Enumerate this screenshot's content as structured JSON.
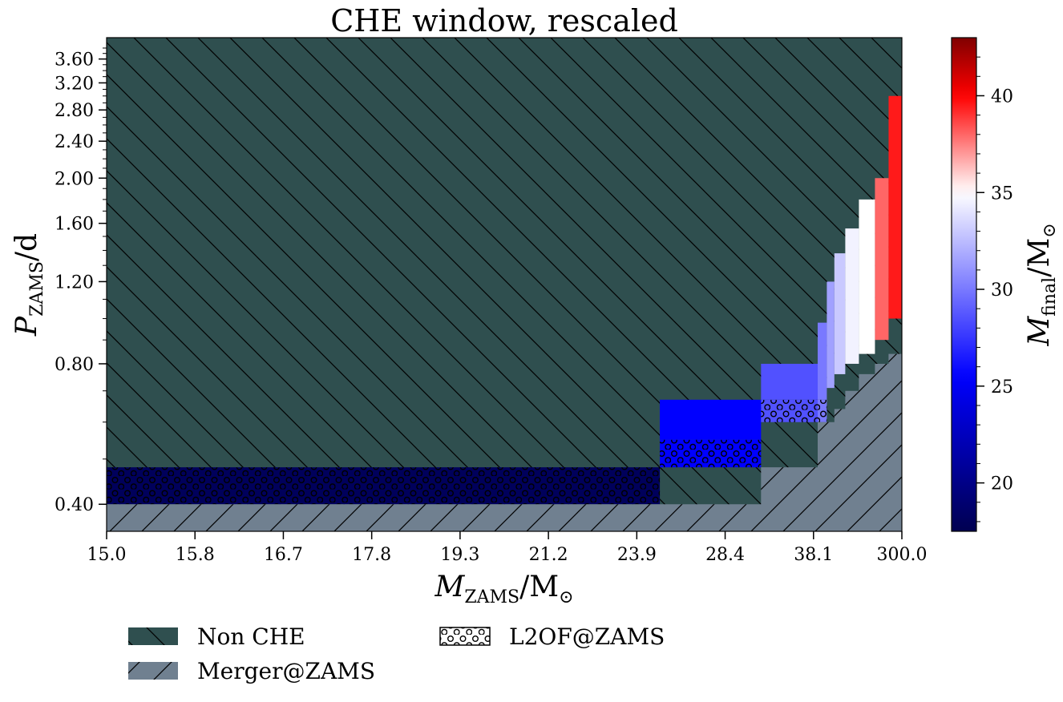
{
  "chart_data": {
    "type": "heatmap",
    "title": "CHE window, rescaled",
    "xlabel": {
      "symbol": "M",
      "subscript": "ZAMS",
      "unit": "/M",
      "unit_sub": "⊙"
    },
    "ylabel": {
      "symbol": "P",
      "subscript": "ZAMS",
      "unit": "/d"
    },
    "x_ticks": [
      "15.0",
      "15.8",
      "16.7",
      "17.8",
      "19.3",
      "21.2",
      "23.9",
      "28.4",
      "38.1",
      "300.0"
    ],
    "y_ticks": [
      "0.40",
      "0.80",
      "1.20",
      "1.60",
      "2.00",
      "2.40",
      "2.80",
      "3.20",
      "3.60"
    ],
    "xlim": [
      15.0,
      300.0
    ],
    "ylim": [
      0.35,
      4.0
    ],
    "y_scale": "log",
    "colorbar": {
      "label": {
        "symbol": "M",
        "subscript": "final",
        "unit": "/M",
        "unit_sub": "⊙"
      },
      "ticks": [
        20,
        25,
        30,
        35,
        40
      ],
      "range": [
        17.5,
        43.0
      ],
      "colors": [
        "#000050",
        "#0000ff",
        "#ffffff",
        "#ff0000",
        "#800000"
      ]
    },
    "regions": {
      "non_che_color": "#2f4f4f",
      "merger_color": "#708090"
    },
    "cells": [
      {
        "x": [
          15.0,
          25.0
        ],
        "p": [
          0.4,
          0.48
        ],
        "m_final": 18.0,
        "l2of": true
      },
      {
        "x": [
          25.0,
          32.0
        ],
        "p": [
          0.48,
          0.55
        ],
        "m_final": 25.5,
        "l2of": true
      },
      {
        "x": [
          25.0,
          32.0
        ],
        "p": [
          0.55,
          0.67
        ],
        "m_final": 25.5,
        "l2of": false
      },
      {
        "x": [
          32.0,
          42.0
        ],
        "p": [
          0.6,
          0.67
        ],
        "m_final": 28.5,
        "l2of": true
      },
      {
        "x": [
          32.0,
          42.0
        ],
        "p": [
          0.67,
          0.8
        ],
        "m_final": 28.5,
        "l2of": false
      },
      {
        "x": [
          42.0,
          52.0
        ],
        "p": [
          0.6,
          0.67
        ],
        "m_final": 30.0,
        "l2of": true
      },
      {
        "x": [
          42.0,
          52.0
        ],
        "p": [
          0.67,
          0.98
        ],
        "m_final": 30.0,
        "l2of": false
      },
      {
        "x": [
          52.0,
          62.0
        ],
        "p": [
          0.71,
          1.2
        ],
        "m_final": 31.5,
        "l2of": false
      },
      {
        "x": [
          62.0,
          80.0
        ],
        "p": [
          0.76,
          1.38
        ],
        "m_final": 33.0,
        "l2of": false
      },
      {
        "x": [
          80.0,
          110.0
        ],
        "p": [
          0.8,
          1.56
        ],
        "m_final": 34.5,
        "l2of": false
      },
      {
        "x": [
          110.0,
          160.0
        ],
        "p": [
          0.84,
          1.8
        ],
        "m_final": 35.0,
        "l2of": false
      },
      {
        "x": [
          160.0,
          220.0
        ],
        "p": [
          0.9,
          2.0
        ],
        "m_final": 38.0,
        "l2of": false
      },
      {
        "x": [
          220.0,
          300.0
        ],
        "p": [
          1.0,
          3.0
        ],
        "m_final": 39.5,
        "l2of": false
      }
    ],
    "merger_boundary": [
      [
        15.0,
        0.4
      ],
      [
        25.0,
        0.4
      ],
      [
        32.0,
        0.48
      ],
      [
        42.0,
        0.6
      ],
      [
        52.0,
        0.6
      ],
      [
        62.0,
        0.64
      ],
      [
        80.0,
        0.7
      ],
      [
        110.0,
        0.76
      ],
      [
        160.0,
        0.8
      ],
      [
        220.0,
        0.84
      ],
      [
        300.0,
        0.9
      ]
    ],
    "legend": [
      {
        "label": "Non CHE",
        "style": "non_che"
      },
      {
        "label": "Merger@ZAMS",
        "style": "merger"
      },
      {
        "label": "L2OF@ZAMS",
        "style": "l2of"
      }
    ]
  }
}
